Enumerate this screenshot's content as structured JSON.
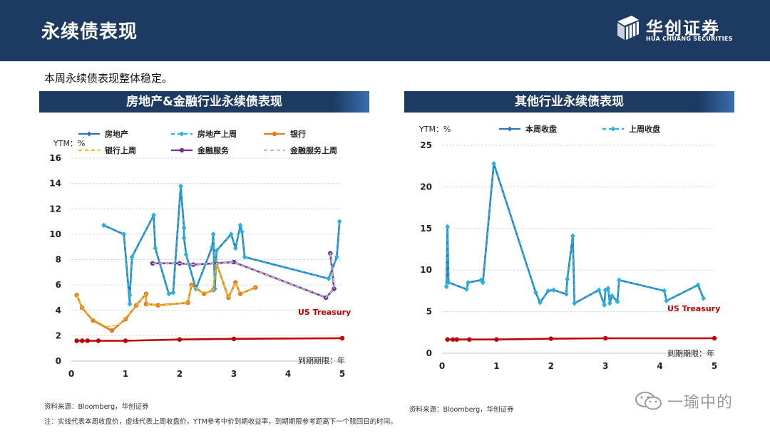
{
  "header": {
    "title": "永续债表现"
  },
  "logo": {
    "cn": "华创证券",
    "en": "HUA CHUANG SECURITIES"
  },
  "intro": "本周永续债表现整体稳定。",
  "panel_titles": [
    "房地产&金融行业永续债表现",
    "其他行业永续债表现"
  ],
  "source_left": "资料来源：Bloomberg，华创证券",
  "source_right": "资料来源：Bloomberg，华创证券",
  "footnote": "注：实线代表本周收盘价，虚线代表上周收盘价，YTM参考中价到期收益率，到期期限参考距离下一个赎回日的时间。",
  "watermark": "一瑜中的",
  "colors": {
    "header": "#1d3a63",
    "treasury": "#c00000",
    "property": "#2e75b6",
    "property_prev": "#1eb4e6",
    "bank": "#e07b22",
    "bank_prev": "#f0c020",
    "finance": "#7030a0",
    "finance_prev": "#bfbfbf"
  },
  "chart_data": [
    {
      "type": "line",
      "title": "房地产&金融行业永续债表现",
      "ylabel": "YTM：%",
      "xlabel": "到期期限：年",
      "xlim": [
        0,
        5
      ],
      "ylim": [
        0,
        16
      ],
      "xticks": [
        0,
        1,
        2,
        3,
        4,
        5
      ],
      "yticks": [
        0,
        2,
        4,
        6,
        8,
        10,
        12,
        14,
        16
      ],
      "grid": true,
      "legend_position": "top",
      "annotation": "US Treasury",
      "series": [
        {
          "name": "房地产",
          "style": "solid",
          "color": "#2e75b6",
          "marker": "diamond",
          "points": [
            [
              0.6,
              10.7
            ],
            [
              0.97,
              10
            ],
            [
              1.08,
              4.5
            ],
            [
              1.08,
              5.2
            ],
            [
              1.12,
              8.2
            ],
            [
              1.52,
              11.5
            ],
            [
              1.55,
              8.9
            ],
            [
              1.8,
              5.3
            ],
            [
              1.88,
              5.4
            ],
            [
              2.02,
              13.8
            ],
            [
              2.08,
              10.5
            ],
            [
              2.08,
              9.7
            ],
            [
              2.12,
              8.4
            ],
            [
              2.3,
              5.7
            ],
            [
              2.6,
              9
            ],
            [
              2.62,
              10
            ],
            [
              2.65,
              5.7
            ],
            [
              2.68,
              8.7
            ],
            [
              2.95,
              10
            ],
            [
              3.03,
              8.9
            ],
            [
              3.12,
              10.7
            ],
            [
              3.15,
              10.2
            ],
            [
              3.2,
              8.2
            ],
            [
              4.75,
              6.5
            ],
            [
              4.9,
              8.2
            ],
            [
              4.95,
              11
            ]
          ]
        },
        {
          "name": "房地产上周",
          "style": "dashed",
          "color": "#1eb4e6",
          "marker": "diamond",
          "points": [
            [
              0.6,
              10.7
            ],
            [
              0.97,
              10
            ],
            [
              1.08,
              4.5
            ],
            [
              1.08,
              5.2
            ],
            [
              1.12,
              8.2
            ],
            [
              1.52,
              11.5
            ],
            [
              1.55,
              8.9
            ],
            [
              1.8,
              5.3
            ],
            [
              1.88,
              5.4
            ],
            [
              2.02,
              13.8
            ],
            [
              2.08,
              10.5
            ],
            [
              2.08,
              9.7
            ],
            [
              2.12,
              8.4
            ],
            [
              2.3,
              5.7
            ],
            [
              2.6,
              9
            ],
            [
              2.62,
              10
            ],
            [
              2.65,
              5.7
            ],
            [
              2.68,
              8.7
            ],
            [
              2.95,
              10
            ],
            [
              3.03,
              8.9
            ],
            [
              3.12,
              10.7
            ],
            [
              3.15,
              10.2
            ],
            [
              3.2,
              8.2
            ],
            [
              4.75,
              6.5
            ],
            [
              4.9,
              8.2
            ],
            [
              4.95,
              11
            ]
          ]
        },
        {
          "name": "银行",
          "style": "solid",
          "color": "#e07b22",
          "marker": "circle",
          "points": [
            [
              0.1,
              5.2
            ],
            [
              0.2,
              4.2
            ],
            [
              0.4,
              3.2
            ],
            [
              0.75,
              2.4
            ],
            [
              1.0,
              3.3
            ],
            [
              1.2,
              4.4
            ],
            [
              1.38,
              5.3
            ],
            [
              1.38,
              4.5
            ],
            [
              1.6,
              4.4
            ],
            [
              2.15,
              4.6
            ],
            [
              2.22,
              6
            ],
            [
              2.45,
              5.3
            ],
            [
              2.62,
              5.6
            ],
            [
              2.68,
              7.7
            ],
            [
              2.9,
              5
            ],
            [
              3.03,
              6.2
            ],
            [
              3.12,
              5.3
            ],
            [
              3.4,
              5.8
            ]
          ]
        },
        {
          "name": "银行上周",
          "style": "dashed",
          "color": "#f0c020",
          "marker": "none",
          "points": [
            [
              0.1,
              5.2
            ],
            [
              0.2,
              4.2
            ],
            [
              0.4,
              3.3
            ],
            [
              0.65,
              2.7
            ],
            [
              0.9,
              2.9
            ],
            [
              1.2,
              4.4
            ],
            [
              1.38,
              5.3
            ],
            [
              1.38,
              4.5
            ],
            [
              1.6,
              4.4
            ],
            [
              2.15,
              4.6
            ],
            [
              2.22,
              6
            ],
            [
              2.45,
              5.3
            ],
            [
              2.62,
              5.6
            ],
            [
              2.68,
              7.7
            ],
            [
              2.9,
              5
            ],
            [
              3.03,
              6.2
            ],
            [
              3.12,
              5.3
            ],
            [
              3.4,
              5.8
            ]
          ]
        },
        {
          "name": "金融服务",
          "style": "solid",
          "color": "#7030a0",
          "marker": "circle",
          "points": [
            [
              1.5,
              7.7
            ],
            [
              2.0,
              7.7
            ],
            [
              2.25,
              7.6
            ],
            [
              3.0,
              7.8
            ],
            [
              4.7,
              5.0
            ],
            [
              4.85,
              5.7
            ],
            [
              4.78,
              8.5
            ]
          ]
        },
        {
          "name": "金融服务上周",
          "style": "dashed",
          "color": "#bfbfbf",
          "marker": "none",
          "points": [
            [
              1.5,
              7.7
            ],
            [
              2.0,
              7.7
            ],
            [
              2.25,
              7.6
            ],
            [
              3.0,
              7.8
            ],
            [
              4.7,
              5.0
            ],
            [
              4.85,
              5.7
            ],
            [
              4.78,
              8.5
            ]
          ]
        },
        {
          "name": "US Treasury",
          "style": "solid",
          "color": "#c00000",
          "marker": "circle",
          "points": [
            [
              0.1,
              1.6
            ],
            [
              0.2,
              1.6
            ],
            [
              0.3,
              1.6
            ],
            [
              0.5,
              1.6
            ],
            [
              1.0,
              1.6
            ],
            [
              2.0,
              1.7
            ],
            [
              3.0,
              1.75
            ],
            [
              5.0,
              1.8
            ]
          ]
        }
      ]
    },
    {
      "type": "line",
      "title": "其他行业永续债表现",
      "ylabel": "YTM：%",
      "xlabel": "到期期限：年",
      "xlim": [
        0,
        5
      ],
      "ylim": [
        0,
        25
      ],
      "xticks": [
        0,
        1,
        2,
        3,
        4,
        5
      ],
      "yticks": [
        0,
        5,
        10,
        15,
        20,
        25
      ],
      "grid": true,
      "legend_position": "top",
      "annotation": "US Treasury",
      "series": [
        {
          "name": "本周收盘",
          "style": "solid",
          "color": "#2e75b6",
          "marker": "diamond",
          "points": [
            [
              0.08,
              8
            ],
            [
              0.1,
              15.2
            ],
            [
              0.12,
              8.5
            ],
            [
              0.45,
              7.7
            ],
            [
              0.48,
              8.5
            ],
            [
              0.72,
              8.8
            ],
            [
              0.75,
              8.5
            ],
            [
              0.95,
              22.8
            ],
            [
              1.72,
              7.3
            ],
            [
              1.8,
              6.1
            ],
            [
              1.95,
              7.5
            ],
            [
              2.05,
              7.6
            ],
            [
              2.28,
              7.1
            ],
            [
              2.3,
              8.9
            ],
            [
              2.4,
              14.1
            ],
            [
              2.43,
              6
            ],
            [
              2.88,
              7.6
            ],
            [
              2.98,
              5.8
            ],
            [
              3.0,
              7.6
            ],
            [
              3.05,
              7.8
            ],
            [
              3.08,
              6
            ],
            [
              3.12,
              6.9
            ],
            [
              3.22,
              6.2
            ],
            [
              3.25,
              8.8
            ],
            [
              4.08,
              7.5
            ],
            [
              4.12,
              6.3
            ],
            [
              4.7,
              8.2
            ],
            [
              4.8,
              6.6
            ]
          ]
        },
        {
          "name": "上周收盘",
          "style": "dashed",
          "color": "#1eb4e6",
          "marker": "diamond",
          "points": [
            [
              0.08,
              8
            ],
            [
              0.1,
              15.2
            ],
            [
              0.12,
              8.5
            ],
            [
              0.45,
              7.7
            ],
            [
              0.48,
              8.5
            ],
            [
              0.72,
              8.8
            ],
            [
              0.75,
              8.5
            ],
            [
              0.95,
              22.8
            ],
            [
              1.72,
              7.3
            ],
            [
              1.8,
              6.1
            ],
            [
              1.95,
              7.5
            ],
            [
              2.05,
              7.6
            ],
            [
              2.28,
              7.1
            ],
            [
              2.3,
              8.9
            ],
            [
              2.4,
              14.1
            ],
            [
              2.43,
              6
            ],
            [
              2.88,
              7.6
            ],
            [
              2.98,
              5.8
            ],
            [
              3.0,
              7.6
            ],
            [
              3.05,
              7.8
            ],
            [
              3.08,
              6
            ],
            [
              3.12,
              6.9
            ],
            [
              3.22,
              6.2
            ],
            [
              3.25,
              8.8
            ],
            [
              4.08,
              7.5
            ],
            [
              4.12,
              6.3
            ],
            [
              4.7,
              8.2
            ],
            [
              4.8,
              6.6
            ]
          ]
        },
        {
          "name": "US Treasury",
          "style": "solid",
          "color": "#c00000",
          "marker": "circle",
          "points": [
            [
              0.1,
              1.65
            ],
            [
              0.2,
              1.65
            ],
            [
              0.27,
              1.65
            ],
            [
              0.5,
              1.65
            ],
            [
              1.0,
              1.65
            ],
            [
              2.0,
              1.75
            ],
            [
              3.0,
              1.8
            ],
            [
              5.0,
              1.8
            ]
          ]
        }
      ]
    }
  ]
}
